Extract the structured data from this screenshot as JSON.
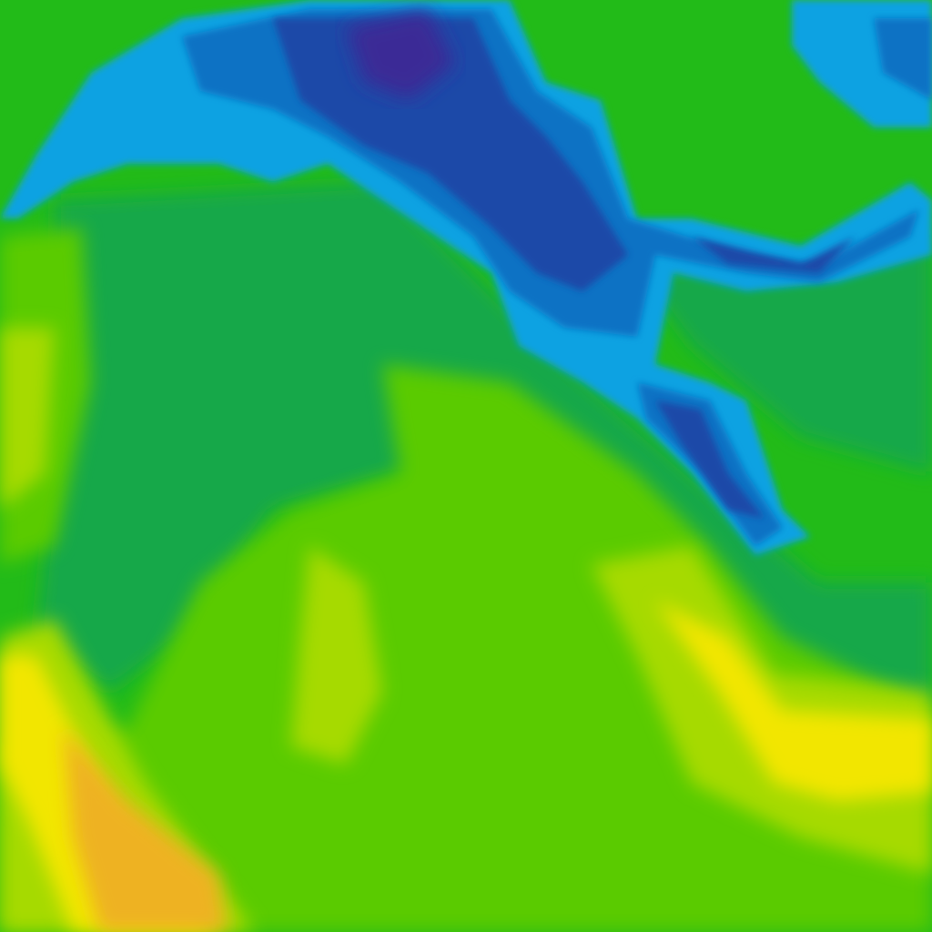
{
  "map": {
    "type": "color-contour-field",
    "palette": {
      "purple": "#3b2a96",
      "dark_blue": "#1a4aa8",
      "blue": "#0b72c4",
      "light_blue": "#0aa2e2",
      "teal_green": "#12a848",
      "green": "#22bb18",
      "light_green": "#5acb06",
      "yellow_green": "#a6da00",
      "yellow": "#f2e600",
      "orange": "#eeb222"
    }
  }
}
